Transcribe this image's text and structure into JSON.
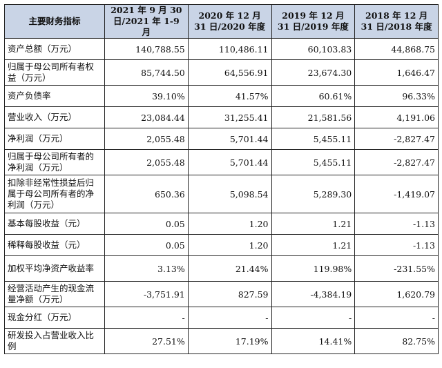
{
  "table": {
    "headers": [
      "主要财务指标",
      "2021 年 9 月 30 日/2021 年 1-9 月",
      "2020 年 12 月 31 日/2020 年度",
      "2019 年 12 月 31 日/2019 年度",
      "2018 年 12 月 31 日/2018 年度"
    ],
    "rows": [
      {
        "label": "资产总额（万元）",
        "values": [
          "140,788.55",
          "110,486.11",
          "60,103.83",
          "44,868.75"
        ]
      },
      {
        "label": "归属于母公司所有者权益（万元）",
        "values": [
          "85,744.50",
          "64,556.91",
          "23,674.30",
          "1,646.47"
        ]
      },
      {
        "label": "资产负债率",
        "values": [
          "39.10%",
          "41.57%",
          "60.61%",
          "96.33%"
        ]
      },
      {
        "label": "营业收入（万元）",
        "values": [
          "23,084.44",
          "31,255.41",
          "21,581.56",
          "4,191.06"
        ]
      },
      {
        "label": "净利润（万元）",
        "values": [
          "2,055.48",
          "5,701.44",
          "5,455.11",
          "-2,827.47"
        ]
      },
      {
        "label": "归属于母公司所有者的净利润（万元）",
        "values": [
          "2,055.48",
          "5,701.44",
          "5,455.11",
          "-2,827.47"
        ]
      },
      {
        "label": "扣除非经常性损益后归属于母公司所有者的净利润（万元）",
        "values": [
          "650.36",
          "5,098.54",
          "5,289.30",
          "-1,419.07"
        ]
      },
      {
        "label": "基本每股收益（元）",
        "values": [
          "0.05",
          "1.20",
          "1.21",
          "-1.13"
        ]
      },
      {
        "label": "稀释每股收益（元）",
        "values": [
          "0.05",
          "1.20",
          "1.21",
          "-1.13"
        ]
      },
      {
        "label": "加权平均净资产收益率",
        "values": [
          "3.13%",
          "21.44%",
          "119.98%",
          "-231.55%"
        ]
      },
      {
        "label": "经营活动产生的现金流量净额（万元）",
        "values": [
          "-3,751.91",
          "827.59",
          "-4,384.19",
          "1,620.79"
        ]
      },
      {
        "label": "现金分红（万元）",
        "values": [
          "-",
          "-",
          "-",
          "-"
        ]
      },
      {
        "label": "研发投入占营业收入比例",
        "values": [
          "27.51%",
          "17.19%",
          "14.41%",
          "82.75%"
        ]
      }
    ]
  }
}
